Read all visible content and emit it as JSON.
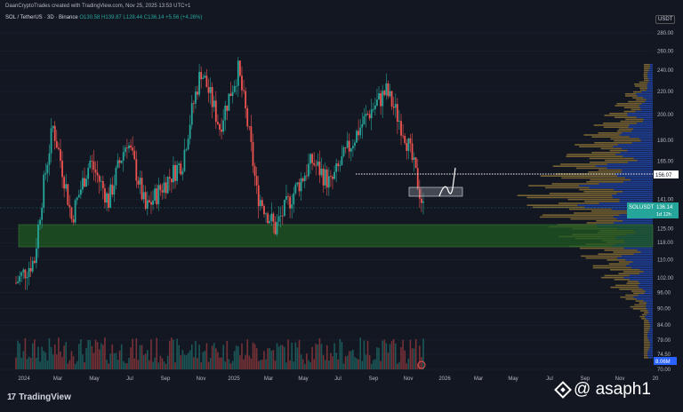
{
  "header": {
    "attribution": "DaanCryptoTrades created with TradingView.com, Nov 25, 2025 13:53 UTC+1",
    "symbol": "SOL / TetherUS · 3D · Binance",
    "ohlc": "O130.58 H139.87 L128.44 C136.14 +5.56 (+4.26%)"
  },
  "price_axis": {
    "currency": "USDT",
    "ticks": [
      "280.00",
      "260.00",
      "240.00",
      "220.00",
      "200.00",
      "180.00",
      "165.00",
      "156.07",
      "141.00",
      "136.14",
      "125.00",
      "118.00",
      "110.00",
      "102.00",
      "96.00",
      "90.00",
      "84.00",
      "79.00",
      "74.50",
      "70.00"
    ],
    "current_label": "SOLUSDT",
    "current_price": "136.14",
    "current_countdown": "1d 12h",
    "level_label": "156.07",
    "volume_label": "8.06M"
  },
  "time_axis": {
    "ticks": [
      "2024",
      "Mar",
      "May",
      "Jul",
      "Sep",
      "Nov",
      "2025",
      "Mar",
      "May",
      "Jul",
      "Sep",
      "Nov",
      "2026",
      "Mar",
      "May",
      "Jul",
      "Sep",
      "Nov",
      "20"
    ]
  },
  "branding": {
    "logo_text": "TradingView",
    "watermark": "@ asaph1"
  },
  "colors": {
    "background": "#131722",
    "up": "#26a69a",
    "down": "#ef5350",
    "support_zone": "#1e5a1e",
    "vp_blue": "#2962ff",
    "vp_gold": "#c8a040"
  },
  "chart_data": {
    "type": "candlestick",
    "symbol": "SOL / TetherUS",
    "timeframe": "3D",
    "y_scale": "log",
    "ylim": [
      70,
      290
    ],
    "x_range": [
      "2024-01",
      "2026-12"
    ],
    "key_level": 156.07,
    "current_price": 136.14,
    "support_zone": [
      118,
      127
    ],
    "resistance_box": [
      141,
      148
    ],
    "monthly_close_approx": [
      {
        "date": "2024-01",
        "close": 100
      },
      {
        "date": "2024-02",
        "close": 110
      },
      {
        "date": "2024-03",
        "close": 190
      },
      {
        "date": "2024-04",
        "close": 130
      },
      {
        "date": "2024-05",
        "close": 165
      },
      {
        "date": "2024-06",
        "close": 140
      },
      {
        "date": "2024-07",
        "close": 180
      },
      {
        "date": "2024-08",
        "close": 135
      },
      {
        "date": "2024-09",
        "close": 150
      },
      {
        "date": "2024-10",
        "close": 165
      },
      {
        "date": "2024-11",
        "close": 240
      },
      {
        "date": "2024-12",
        "close": 190
      },
      {
        "date": "2025-01",
        "close": 240
      },
      {
        "date": "2025-02",
        "close": 145
      },
      {
        "date": "2025-03",
        "close": 125
      },
      {
        "date": "2025-04",
        "close": 145
      },
      {
        "date": "2025-05",
        "close": 165
      },
      {
        "date": "2025-06",
        "close": 150
      },
      {
        "date": "2025-07",
        "close": 175
      },
      {
        "date": "2025-08",
        "close": 200
      },
      {
        "date": "2025-09",
        "close": 220
      },
      {
        "date": "2025-10",
        "close": 185
      },
      {
        "date": "2025-11",
        "close": 136
      }
    ]
  }
}
